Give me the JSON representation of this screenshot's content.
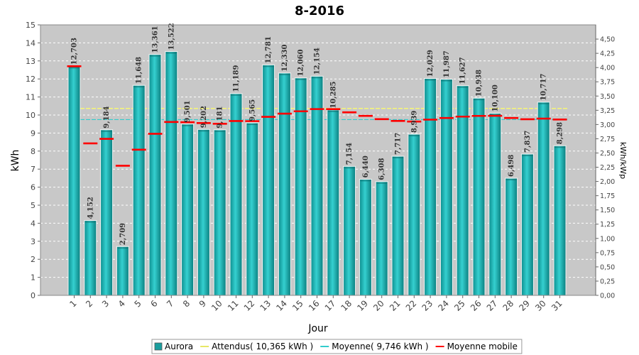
{
  "chart_data": {
    "type": "bar",
    "title": "8-2016",
    "xlabel": "Jour",
    "ylabel": "kWh",
    "ylabel_right": "kWh/kWp",
    "ylim": [
      0,
      15
    ],
    "ylim_right": [
      0,
      4.75
    ],
    "y_ticks": [
      "0",
      "1",
      "2",
      "3",
      "4",
      "5",
      "6",
      "7",
      "8",
      "9",
      "10",
      "11",
      "12",
      "13",
      "14",
      "15"
    ],
    "y_right_ticks": [
      "0,00",
      "0,25",
      "0,50",
      "0,75",
      "1,00",
      "1,25",
      "1,50",
      "1,75",
      "2,00",
      "2,25",
      "2,50",
      "2,75",
      "3,00",
      "3,25",
      "3,50",
      "3,75",
      "4,00",
      "4,25",
      "4,50"
    ],
    "grid": true,
    "legend_position": "bottom",
    "categories": [
      "1",
      "2",
      "3",
      "4",
      "5",
      "6",
      "7",
      "8",
      "9",
      "10",
      "11",
      "12",
      "13",
      "14",
      "15",
      "16",
      "17",
      "18",
      "19",
      "20",
      "21",
      "22",
      "23",
      "24",
      "25",
      "26",
      "27",
      "28",
      "29",
      "30",
      "31"
    ],
    "value_labels": [
      "12,703",
      "4,152",
      "9,184",
      "2,709",
      "11,648",
      "13,361",
      "13,522",
      "9,501",
      "9,202",
      "9,181",
      "11,189",
      "9,565",
      "12,781",
      "12,330",
      "12,060",
      "12,154",
      "10,285",
      "7,154",
      "6,440",
      "6,308",
      "7,717",
      "8,939",
      "12,029",
      "11,987",
      "11,627",
      "10,938",
      "10,100",
      "6,498",
      "7,837",
      "10,717",
      "8,298"
    ],
    "series": [
      {
        "name": "Aurora",
        "color": "#1fb5b5",
        "values": [
          12.703,
          4.152,
          9.184,
          2.709,
          11.648,
          13.361,
          13.522,
          9.501,
          9.202,
          9.181,
          11.189,
          9.565,
          12.781,
          12.33,
          12.06,
          12.154,
          10.285,
          7.154,
          6.44,
          6.308,
          7.717,
          8.939,
          12.029,
          11.987,
          11.627,
          10.938,
          10.1,
          6.498,
          7.837,
          10.717,
          8.298
        ]
      },
      {
        "name": "Moyenne mobile",
        "color": "#ff0000",
        "values": [
          12.703,
          8.428,
          8.68,
          7.187,
          8.079,
          8.96,
          9.612,
          9.598,
          9.554,
          9.516,
          9.668,
          9.66,
          9.9,
          10.075,
          10.207,
          10.33,
          10.328,
          10.151,
          9.955,
          9.772,
          9.674,
          9.64,
          9.744,
          9.836,
          9.911,
          9.951,
          9.957,
          9.834,
          9.768,
          9.8,
          9.752
        ]
      }
    ],
    "reference_lines": [
      {
        "name": "Attendus",
        "label": "Attendus( 10,365 kWh )",
        "value": 10.365,
        "color": "#ffff66"
      },
      {
        "name": "Moyenne",
        "label": "Moyenne( 9,746 kWh )",
        "value": 9.746,
        "color": "#33cccc"
      }
    ],
    "legend": [
      {
        "label": "Aurora",
        "kind": "box",
        "color": "#1a9e9e"
      },
      {
        "label": "Attendus( 10,365 kWh )",
        "kind": "line",
        "color": "#e8e866"
      },
      {
        "label": "Moyenne( 9,746 kWh )",
        "kind": "line",
        "color": "#33cccc"
      },
      {
        "label": "Moyenne mobile",
        "kind": "line",
        "color": "#ff0000"
      }
    ]
  }
}
